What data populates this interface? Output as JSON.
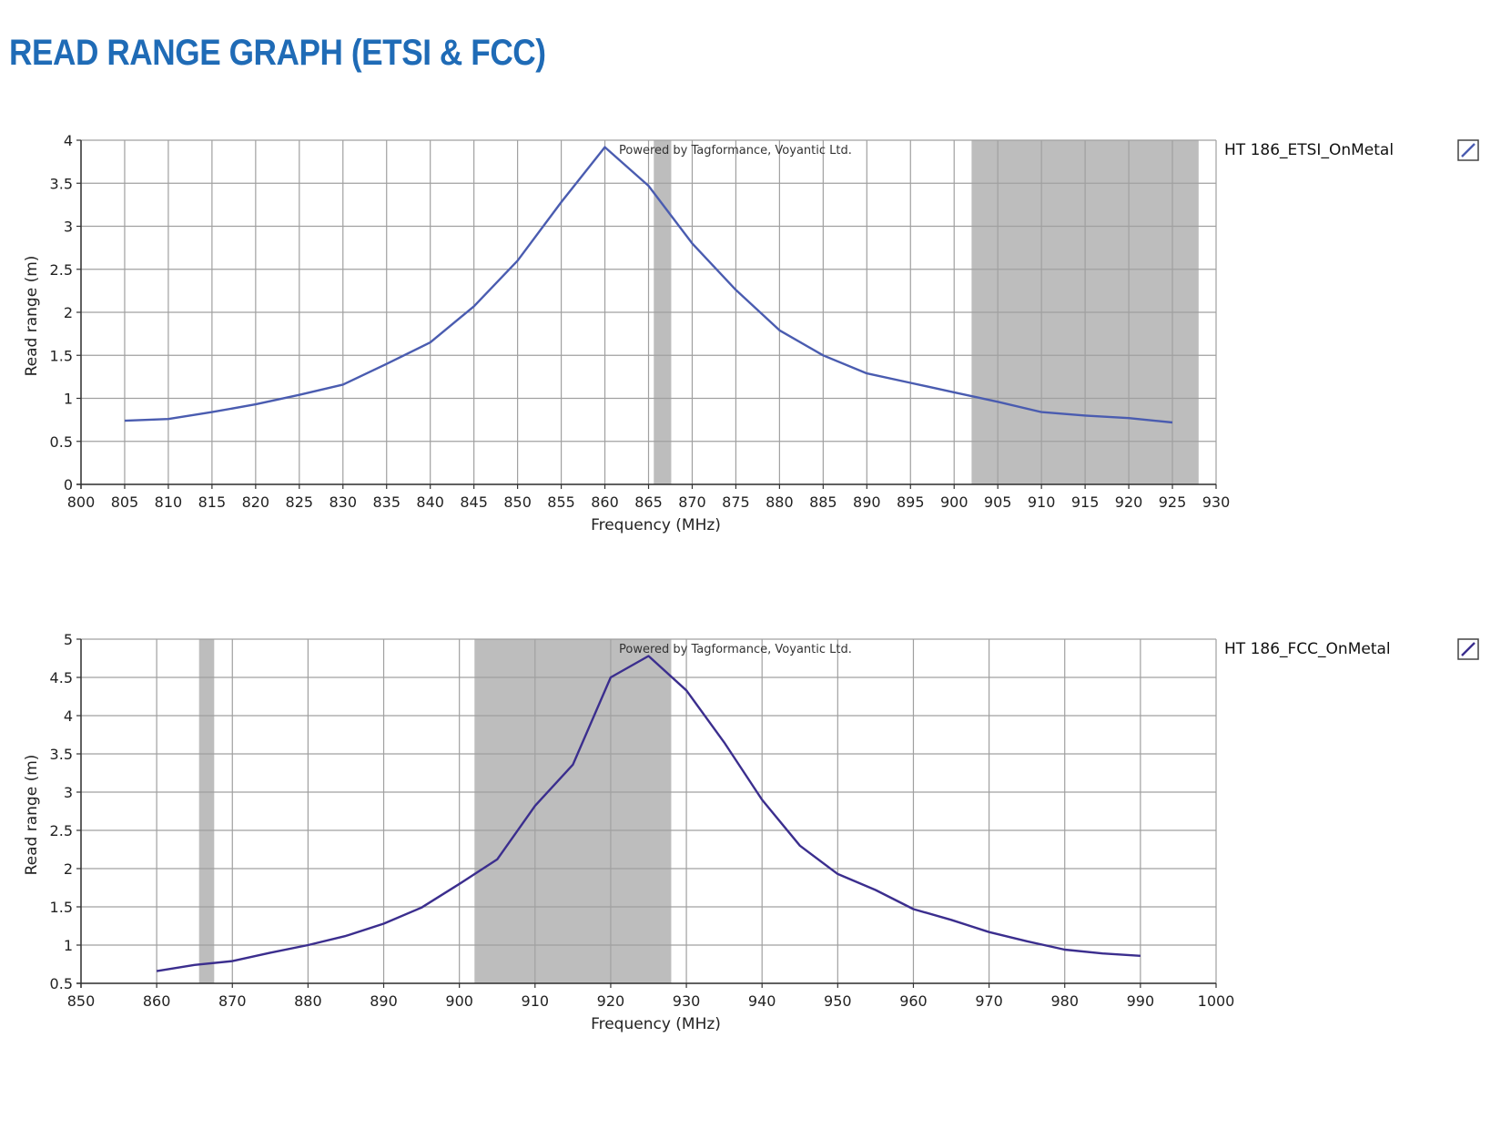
{
  "title": "READ RANGE GRAPH (ETSI & FCC)",
  "colors": {
    "title": "#1f6bb6",
    "band": "#bdbdbd",
    "grid": "#a0a0a0",
    "etsi_line": "#4a5cb0",
    "fcc_line": "#3b2e8e"
  },
  "chart_data": [
    {
      "type": "line",
      "watermark": "Powered by Tagformance, Voyantic Ltd.",
      "xlabel": "Frequency (MHz)",
      "ylabel": "Read range (m)",
      "xlim": [
        800,
        930
      ],
      "ylim": [
        0,
        4
      ],
      "xticks": [
        800,
        805,
        810,
        815,
        820,
        825,
        830,
        835,
        840,
        845,
        850,
        855,
        860,
        865,
        870,
        875,
        880,
        885,
        890,
        895,
        900,
        905,
        910,
        915,
        920,
        925,
        930
      ],
      "yticks": [
        0,
        0.5,
        1,
        1.5,
        2,
        2.5,
        3,
        3.5,
        4
      ],
      "ytick_labels": [
        "0",
        "0.5",
        "1",
        "1.5",
        "2",
        "2.5",
        "3",
        "3.5",
        "4"
      ],
      "grid": true,
      "legend_position": "right",
      "shaded_bands": [
        [
          865.6,
          867.6
        ],
        [
          902,
          928
        ]
      ],
      "series": [
        {
          "name": "HT 186_ETSI_OnMetal",
          "color": "#4a5cb0",
          "x": [
            805,
            810,
            815,
            820,
            825,
            830,
            835,
            840,
            845,
            850,
            855,
            860,
            865,
            870,
            875,
            880,
            885,
            890,
            895,
            900,
            905,
            910,
            915,
            920,
            925
          ],
          "y": [
            0.74,
            0.76,
            0.84,
            0.93,
            1.04,
            1.16,
            1.4,
            1.65,
            2.07,
            2.6,
            3.28,
            3.92,
            3.47,
            2.8,
            2.26,
            1.79,
            1.5,
            1.29,
            1.18,
            1.07,
            0.96,
            0.84,
            0.8,
            0.77,
            0.72
          ]
        }
      ]
    },
    {
      "type": "line",
      "watermark": "Powered by Tagformance, Voyantic Ltd.",
      "xlabel": "Frequency (MHz)",
      "ylabel": "Read range (m)",
      "xlim": [
        850,
        1000
      ],
      "ylim": [
        0.5,
        5
      ],
      "xticks": [
        850,
        860,
        870,
        880,
        890,
        900,
        910,
        920,
        930,
        940,
        950,
        960,
        970,
        980,
        990,
        1000
      ],
      "yticks": [
        0.5,
        1,
        1.5,
        2,
        2.5,
        3,
        3.5,
        4,
        4.5,
        5
      ],
      "ytick_labels": [
        "0.5",
        "1",
        "1.5",
        "2",
        "2.5",
        "3",
        "3.5",
        "4",
        "4.5",
        "5"
      ],
      "grid": true,
      "legend_position": "right",
      "shaded_bands": [
        [
          865.6,
          867.6
        ],
        [
          902,
          928
        ]
      ],
      "series": [
        {
          "name": "HT 186_FCC_OnMetal",
          "color": "#3b2e8e",
          "x": [
            860,
            865,
            870,
            875,
            880,
            885,
            890,
            895,
            900,
            905,
            910,
            915,
            920,
            925,
            930,
            935,
            940,
            945,
            950,
            955,
            960,
            965,
            970,
            975,
            980,
            985,
            990
          ],
          "y": [
            0.66,
            0.74,
            0.79,
            0.9,
            1.0,
            1.12,
            1.28,
            1.49,
            1.8,
            2.12,
            2.82,
            3.36,
            4.5,
            4.78,
            4.33,
            3.65,
            2.9,
            2.3,
            1.93,
            1.72,
            1.47,
            1.33,
            1.17,
            1.05,
            0.94,
            0.89,
            0.86
          ]
        }
      ]
    }
  ]
}
